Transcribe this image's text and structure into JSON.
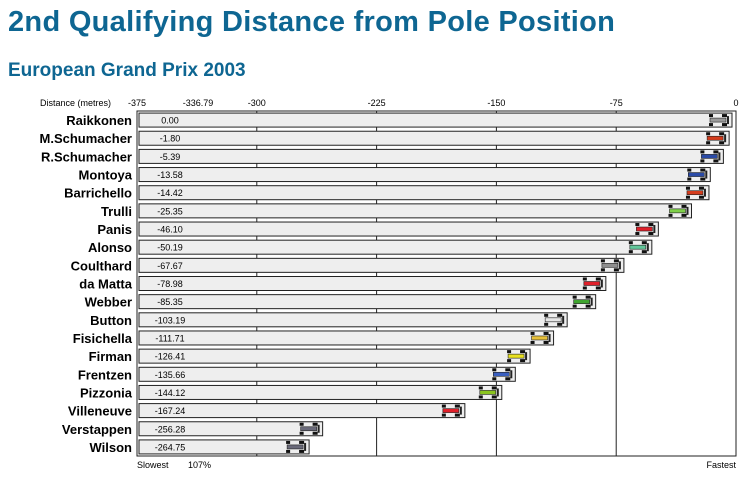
{
  "title": "2nd Qualifying Distance from Pole Position",
  "subtitle": "European Grand Prix 2003",
  "chart_data": {
    "type": "bar",
    "title": "2nd Qualifying Distance from Pole Position",
    "subtitle": "European Grand Prix 2003",
    "xlabel": "Distance (metres)",
    "xlim": [
      -375,
      0
    ],
    "ticks": [
      "-375",
      "-336.79",
      "-300",
      "-225",
      "-150",
      "-75",
      "0"
    ],
    "tick_values": [
      -375,
      -336.79,
      -300,
      -225,
      -150,
      -75,
      0
    ],
    "gridlines": [
      -300,
      -225,
      -150,
      -75
    ],
    "bottom_labels": {
      "left": "Slowest",
      "mark": "107%",
      "right": "Fastest"
    },
    "categories": [
      "Raikkonen",
      "M.Schumacher",
      "R.Schumacher",
      "Montoya",
      "Barrichello",
      "Trulli",
      "Panis",
      "Alonso",
      "Coulthard",
      "da Matta",
      "Webber",
      "Button",
      "Fisichella",
      "Firman",
      "Frentzen",
      "Pizzonia",
      "Villeneuve",
      "Verstappen",
      "Wilson"
    ],
    "values": [
      0.0,
      -1.8,
      -5.39,
      -13.58,
      -14.42,
      -25.35,
      -46.1,
      -50.19,
      -67.67,
      -78.98,
      -85.35,
      -103.19,
      -111.71,
      -126.41,
      -135.66,
      -144.12,
      -167.24,
      -256.28,
      -264.75
    ],
    "value_labels": [
      "0.00",
      "-1.80",
      "-5.39",
      "-13.58",
      "-14.42",
      "-25.35",
      "-46.10",
      "-50.19",
      "-67.67",
      "-78.98",
      "-85.35",
      "-103.19",
      "-111.71",
      "-126.41",
      "-135.66",
      "-144.12",
      "-167.24",
      "-256.28",
      "-264.75"
    ],
    "car_colors": [
      "#9a9a9a",
      "#d43c1c",
      "#2a4aa6",
      "#2a4aa6",
      "#d43c1c",
      "#7fd04a",
      "#e0202a",
      "#62c79a",
      "#8e8e8e",
      "#e0202a",
      "#3fa52f",
      "#e6e6e6",
      "#e6c03a",
      "#e8e020",
      "#3a5fc0",
      "#8ac41f",
      "#e0202a",
      "#6a6a7a",
      "#6a6a7a"
    ],
    "bar_color": "#eeeeee",
    "grid": true
  }
}
